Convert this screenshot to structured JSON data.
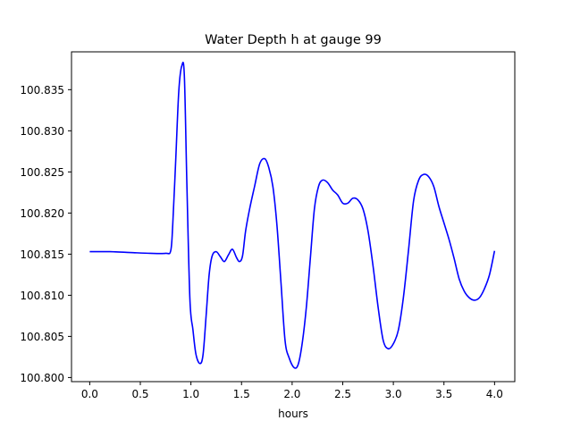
{
  "chart_data": {
    "type": "line",
    "title": "Water Depth h at gauge 99",
    "xlabel": "hours",
    "ylabel": "",
    "xlim": [
      -0.18,
      4.2
    ],
    "ylim": [
      100.7995,
      100.8396
    ],
    "x_ticks": [
      0.0,
      0.5,
      1.0,
      1.5,
      2.0,
      2.5,
      3.0,
      3.5,
      4.0
    ],
    "x_tick_labels": [
      "0.0",
      "0.5",
      "1.0",
      "1.5",
      "2.0",
      "2.5",
      "3.0",
      "3.5",
      "4.0"
    ],
    "y_ticks": [
      100.8,
      100.805,
      100.81,
      100.815,
      100.82,
      100.825,
      100.83,
      100.835
    ],
    "y_tick_labels": [
      "100.800",
      "100.805",
      "100.810",
      "100.815",
      "100.820",
      "100.825",
      "100.830",
      "100.835"
    ],
    "grid": false,
    "legend": "none",
    "series": [
      {
        "color": "#0000ff",
        "x": [
          0.0,
          0.2,
          0.4,
          0.6,
          0.75,
          0.8,
          0.82,
          0.85,
          0.88,
          0.91,
          0.935,
          0.96,
          0.99,
          1.02,
          1.05,
          1.09,
          1.12,
          1.15,
          1.18,
          1.21,
          1.25,
          1.29,
          1.33,
          1.37,
          1.41,
          1.45,
          1.48,
          1.51,
          1.54,
          1.58,
          1.63,
          1.68,
          1.73,
          1.77,
          1.81,
          1.85,
          1.89,
          1.93,
          1.97,
          2.02,
          2.06,
          2.1,
          2.14,
          2.18,
          2.22,
          2.26,
          2.3,
          2.35,
          2.4,
          2.45,
          2.5,
          2.55,
          2.6,
          2.65,
          2.7,
          2.75,
          2.8,
          2.85,
          2.9,
          2.95,
          3.0,
          3.05,
          3.1,
          3.15,
          3.2,
          3.25,
          3.3,
          3.35,
          3.4,
          3.45,
          3.5,
          3.55,
          3.6,
          3.65,
          3.7,
          3.75,
          3.8,
          3.85,
          3.9,
          3.95,
          4.0
        ],
        "y": [
          100.8153,
          100.8153,
          100.8152,
          100.8151,
          100.8151,
          100.8154,
          100.8185,
          100.8265,
          100.8348,
          100.8379,
          100.8367,
          100.8235,
          100.8095,
          100.8058,
          100.8028,
          100.8017,
          100.8028,
          100.8075,
          100.8125,
          100.8148,
          100.8153,
          100.8147,
          100.8141,
          100.8149,
          100.8156,
          100.8146,
          100.8141,
          100.8148,
          100.8178,
          100.8205,
          100.8233,
          100.826,
          100.8266,
          100.8255,
          100.8232,
          100.8185,
          100.8115,
          100.8045,
          100.8024,
          100.8012,
          100.8016,
          100.8042,
          100.8085,
          100.8145,
          100.8205,
          100.8232,
          100.824,
          100.8237,
          100.8228,
          100.8222,
          100.8212,
          100.8212,
          100.8218,
          100.8216,
          100.8205,
          100.8178,
          100.8135,
          100.8085,
          100.8045,
          100.8035,
          100.8041,
          100.8058,
          100.8098,
          100.8155,
          100.8215,
          100.824,
          100.8247,
          100.8244,
          100.8232,
          100.8208,
          100.8188,
          100.8168,
          100.8145,
          100.812,
          100.8105,
          100.8097,
          100.8094,
          100.8097,
          100.8108,
          100.8125,
          100.8154
        ]
      }
    ]
  }
}
